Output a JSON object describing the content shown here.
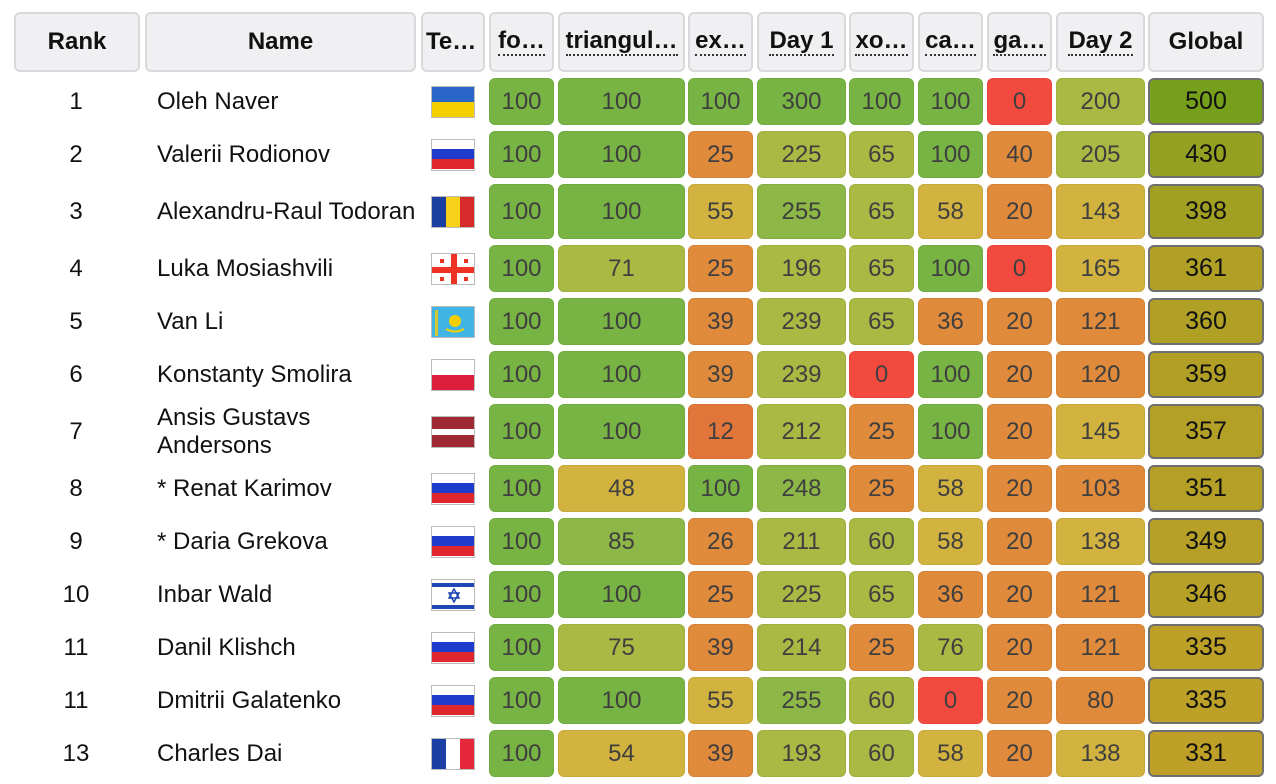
{
  "colors": {
    "c100": "#78b443",
    "c_hi": "#8db747",
    "c_mid": "#a9b944",
    "c_yellow": "#d2b33f",
    "c_orange": "#e08a3b",
    "c_orange2": "#e2763a",
    "c_red": "#f34a3f"
  },
  "headers": {
    "rank": "Rank",
    "name": "Name",
    "team": "Te…",
    "t1": "fo…",
    "t2": "triangul…",
    "t3": "ex…",
    "day1": "Day 1",
    "t4": "xo…",
    "t5": "ca…",
    "t6": "ga…",
    "day2": "Day 2",
    "global": "Global"
  },
  "rows": [
    {
      "rank": "1",
      "name": "Oleh Naver",
      "flag": "ukraine-flag-icon",
      "scores": [
        "100",
        "100",
        "100",
        "300",
        "100",
        "100",
        "0",
        "200",
        "500"
      ]
    },
    {
      "rank": "2",
      "name": "Valerii Rodionov",
      "flag": "russia-flag-icon",
      "scores": [
        "100",
        "100",
        "25",
        "225",
        "65",
        "100",
        "40",
        "205",
        "430"
      ]
    },
    {
      "rank": "3",
      "name": "Alexandru-Raul Todoran",
      "flag": "romania-flag-icon",
      "scores": [
        "100",
        "100",
        "55",
        "255",
        "65",
        "58",
        "20",
        "143",
        "398"
      ]
    },
    {
      "rank": "4",
      "name": "Luka Mosiashvili",
      "flag": "georgia-flag-icon",
      "scores": [
        "100",
        "71",
        "25",
        "196",
        "65",
        "100",
        "0",
        "165",
        "361"
      ]
    },
    {
      "rank": "5",
      "name": "Van Li",
      "flag": "kazakhstan-flag-icon",
      "scores": [
        "100",
        "100",
        "39",
        "239",
        "65",
        "36",
        "20",
        "121",
        "360"
      ]
    },
    {
      "rank": "6",
      "name": "Konstanty Smolira",
      "flag": "poland-flag-icon",
      "scores": [
        "100",
        "100",
        "39",
        "239",
        "0",
        "100",
        "20",
        "120",
        "359"
      ]
    },
    {
      "rank": "7",
      "name": "Ansis Gustavs Andersons",
      "flag": "latvia-flag-icon",
      "scores": [
        "100",
        "100",
        "12",
        "212",
        "25",
        "100",
        "20",
        "145",
        "357"
      ]
    },
    {
      "rank": "8",
      "name": "* Renat Karimov",
      "flag": "russia-flag-icon",
      "scores": [
        "100",
        "48",
        "100",
        "248",
        "25",
        "58",
        "20",
        "103",
        "351"
      ]
    },
    {
      "rank": "9",
      "name": "* Daria Grekova",
      "flag": "russia-flag-icon",
      "scores": [
        "100",
        "85",
        "26",
        "211",
        "60",
        "58",
        "20",
        "138",
        "349"
      ]
    },
    {
      "rank": "10",
      "name": "Inbar Wald",
      "flag": "israel-flag-icon",
      "scores": [
        "100",
        "100",
        "25",
        "225",
        "65",
        "36",
        "20",
        "121",
        "346"
      ]
    },
    {
      "rank": "11",
      "name": "Danil Klishch",
      "flag": "russia-flag-icon",
      "scores": [
        "100",
        "75",
        "39",
        "214",
        "25",
        "76",
        "20",
        "121",
        "335"
      ]
    },
    {
      "rank": "11",
      "name": "Dmitrii Galatenko",
      "flag": "russia-flag-icon",
      "scores": [
        "100",
        "100",
        "55",
        "255",
        "60",
        "0",
        "20",
        "80",
        "335"
      ]
    },
    {
      "rank": "13",
      "name": "Charles Dai",
      "flag": "france-flag-icon",
      "scores": [
        "100",
        "54",
        "39",
        "193",
        "60",
        "58",
        "20",
        "138",
        "331"
      ]
    }
  ]
}
